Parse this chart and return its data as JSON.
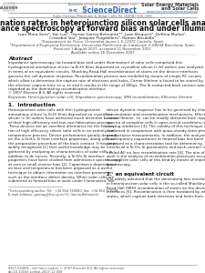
{
  "background_color": "#ffffff",
  "available_online": "Available online at www.sciencedirect.com",
  "sciencedirect": "ScienceDirect",
  "journal_name_1": "Solar Energy Materials",
  "journal_name_2": "and Solar Cells",
  "journal_url": "www.elsevier.com/locate/solmat",
  "article_info": "Solar Energy Materials & Solar Cells 92 (2008) 505–509",
  "elsevier_label": "ELSEVIER",
  "title_line1": "Recombination rates in heterojunction silicon solar cells analyzed by",
  "title_line2": "impedance spectroscopy at forward bias and under illumination",
  "authors_line1": "Ivan Mora-Seróᵃ, Yan Luoᵇ, Germa Garcia-Belmonteᵃ*, Juan Bisquertᵃ, Delfina Muñozᶜ,",
  "authors_line2": "Cristóbal Vozᵈ, Joaquim Puigdollersᵈ, Ramon Alcubillaᵈ",
  "affil1": "ᵃDepartament de Física, Universitat Jaume I, E-12071 Castelló, Spain",
  "affil2": "ᵇDepartament d’Enginyeria Electrònica, Universitat Politècnica de Catalunya, E-08034 Barcelona, Spain",
  "received": "Received 1 August 2007; accepted 11 November 2007",
  "available_online2": "Available online 26 December 2007",
  "abstract_heading": "Abstract",
  "abstract_body": "Impedance spectroscopy (at forward bias and under illumination) of solar cells comprised thin hydrogenated amorphous silicon (a-Si:H) films deposited on crystalline silicon (c-Si) wafers was analyzed in terms of an equivalent circuits. Shockley-Read-Hall recombination of states on the device interfaces governs the cell dynamic response. Recombination process was modeled by means of simple RC circuits which allow to determine the capture rate of electrons and holes. Carrier lifetime is found to be stored by the electron capture time τn ≃ τe and it results in the range of 900μs. The Si-contacted back contact was regarded as the dominating recombination interface.",
  "abstract_copy": "© 2007 Elsevier B.V. All rights reserved.",
  "keywords": "Keywords: Heterojunction solar cell; Impedance spectroscopy; SRH recombination; Effective lifetime",
  "s1_heading": "1.  Introduction",
  "s1_col1_lines": [
    "Heterojunction solar cells with thin hydrogenated",
    "amorphous silicon (a-Si:H) films deposited on crystalline",
    "silicon (c-Si) wafers have attracted much attention because",
    "of their high-efficiency and low-cost fabrication process.",
    "These devices are an excellent alternative for the fabrica-",
    "tion of high-efficiency silicon solar cells in an entirely low-",
    "temperature process. Device performance greatly depends",
    "on the a-Si:H/c-Si front interface properties, along with on",
    "the preparation procedure of the back contact. It has been",
    "widely recognized [1] that useful knowledge may be",
    "gathered by analyzing ac characteristics of solar cells in",
    "addition to dc curves. Recently, a-Si:H/c-Si interface",
    "properties have been studied from admittance spectroscopy",
    "at zero or small reverse bias [2]. Capacitance dependence",
    "on bias and temperature has been proposed as a useful",
    "technique to obtain information on interface parameters",
    "such as the interface defect density. When solar cells are",
    "submitted at forward bias or work under illumination, the"
  ],
  "s1_col2_lines": [
    "device dynamic response has to be governed by charge",
    "accumulation and recombination mechanisms. Effective",
    "carrier lifetime, τe, can be readily obtained from impedance",
    "spectra of complete cells in open-circuit conditions under",
    "varying irradiance [3]. The validity of this technique was",
    "confirmed in comparison with quasi-steady-state photo-",
    "conductance measurements. In addition, the analysis of the",
    "low-frequency capacitance at forward bias has been",
    "proposed as a characterization tool for determining",
    "interfacial a-Si:H/c-Si parameters and back-contact (an-",
    "nealed Al) no-loss recombination rate [4]. The aim of this",
    "work is the analysis of recombination processes occurring",
    "in complete solar cells of this kind by means of impedance",
    "spectroscopy."
  ],
  "s2_heading": "2.  an equivalent circuit",
  "s2_col2_lines": [
    "It is widely admitted that the dominating loss mechanism",
    "in heterojunction solar cells is the so-called Shockley-",
    "Read-Hall (SRH) recombination of states on the device",
    "interfaces [5]. Recombination is then mediated by interface",
    "states, which capture both electrons and holes from"
  ],
  "footnote_corr": "*Corresponding author. Tel.: +34 964 728060; fax: +34 964 729218.",
  "footnote_email": "E-mail address: garciag@fca.uji.es (G. Garcia-Belmonte).",
  "footer_doi": "0927-0248/$ - see front matter © 2007 Elsevier B.V. All rights reserved.",
  "footer_doi2": "doi:10.1016/j.solmat.2007.12.008"
}
